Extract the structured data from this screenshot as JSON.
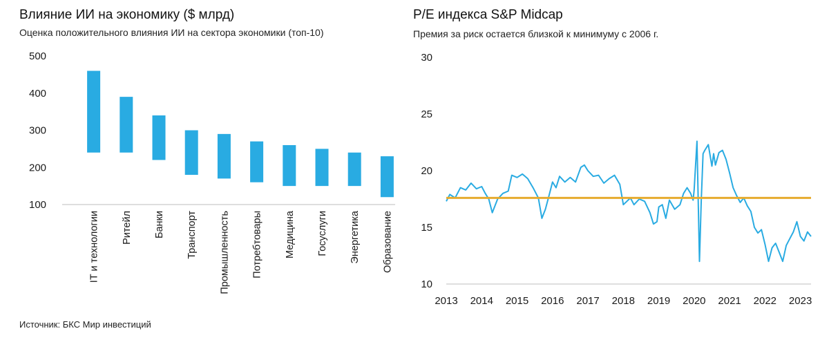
{
  "source": "Источник: БКС Мир инвестиций",
  "colors": {
    "bar": "#29abe2",
    "line": "#29abe2",
    "reference": "#e6ab2e",
    "axis": "#bdbdbd"
  },
  "chart_data": [
    {
      "type": "bar",
      "title": "Влияние ИИ на экономику ($ млрд)",
      "subtitle": "Оценка положительного влияния ИИ на сектора экономики (топ-10)",
      "ylim": [
        100,
        500
      ],
      "yticks": [
        "500",
        "400",
        "300",
        "200",
        "100"
      ],
      "ytick_values": [
        500,
        400,
        300,
        200,
        100
      ],
      "categories": [
        "IT и технологии",
        "Ритейл",
        "Банки",
        "Транспорт",
        "Промышленность",
        "Потребтовары",
        "Медицина",
        "Госуслуги",
        "Энергетика",
        "Образование"
      ],
      "series": [
        {
          "low": [
            240,
            240,
            220,
            180,
            170,
            160,
            150,
            150,
            150,
            120
          ],
          "high": [
            460,
            390,
            340,
            300,
            290,
            270,
            260,
            250,
            240,
            230
          ]
        }
      ],
      "grid": false
    },
    {
      "type": "line",
      "title": "P/E индекса S&P Midcap",
      "subtitle": "Премия за риск остается близкой к минимуму с 2006 г.",
      "ylim": [
        10,
        30
      ],
      "yticks": [
        "30",
        "25",
        "20",
        "15",
        "10"
      ],
      "ytick_values": [
        30,
        25,
        20,
        15,
        10
      ],
      "xticks": [
        "2013",
        "2014",
        "2015",
        "2016",
        "2017",
        "2018",
        "2019",
        "2020",
        "2021",
        "2022",
        "2023"
      ],
      "xtick_values": [
        2013,
        2014,
        2015,
        2016,
        2017,
        2018,
        2019,
        2020,
        2021,
        2022,
        2023
      ],
      "xlim": [
        2013,
        2023.3
      ],
      "series": [
        {
          "x": [
            2013.0,
            2013.1,
            2013.25,
            2013.4,
            2013.55,
            2013.7,
            2013.85,
            2014.0,
            2014.1,
            2014.2,
            2014.3,
            2014.45,
            2014.6,
            2014.75,
            2014.85,
            2015.0,
            2015.15,
            2015.3,
            2015.45,
            2015.6,
            2015.7,
            2015.8,
            2015.9,
            2016.0,
            2016.1,
            2016.2,
            2016.35,
            2016.5,
            2016.65,
            2016.8,
            2016.9,
            2017.0,
            2017.15,
            2017.3,
            2017.45,
            2017.6,
            2017.75,
            2017.9,
            2018.0,
            2018.1,
            2018.2,
            2018.3,
            2018.45,
            2018.6,
            2018.75,
            2018.85,
            2018.95,
            2019.0,
            2019.1,
            2019.2,
            2019.3,
            2019.45,
            2019.6,
            2019.7,
            2019.8,
            2019.9,
            2019.97,
            2020.0,
            2020.03,
            2020.08,
            2020.15,
            2020.2,
            2020.25,
            2020.3,
            2020.4,
            2020.5,
            2020.55,
            2020.6,
            2020.7,
            2020.8,
            2020.9,
            2021.0,
            2021.1,
            2021.2,
            2021.3,
            2021.4,
            2021.5,
            2021.6,
            2021.7,
            2021.8,
            2021.9,
            2022.0,
            2022.1,
            2022.2,
            2022.3,
            2022.4,
            2022.5,
            2022.6,
            2022.7,
            2022.8,
            2022.9,
            2023.0,
            2023.1,
            2023.2,
            2023.3
          ],
          "values": [
            17.3,
            17.9,
            17.6,
            18.5,
            18.3,
            18.9,
            18.4,
            18.6,
            18.0,
            17.5,
            16.3,
            17.5,
            18.0,
            18.2,
            19.6,
            19.4,
            19.7,
            19.3,
            18.5,
            17.6,
            15.8,
            16.6,
            17.8,
            19.0,
            18.5,
            19.5,
            19.0,
            19.4,
            19.0,
            20.3,
            20.5,
            20.0,
            19.5,
            19.6,
            18.9,
            19.3,
            19.6,
            18.8,
            17.0,
            17.3,
            17.6,
            17.0,
            17.5,
            17.3,
            16.3,
            15.3,
            15.5,
            16.8,
            17.0,
            15.8,
            17.4,
            16.6,
            17.0,
            18.0,
            18.5,
            18.0,
            17.4,
            18.3,
            20.0,
            22.6,
            12.0,
            17.4,
            21.5,
            21.8,
            22.3,
            20.4,
            21.5,
            20.5,
            21.6,
            21.8,
            21.0,
            19.8,
            18.5,
            17.8,
            17.2,
            17.6,
            16.9,
            16.4,
            15.0,
            14.5,
            14.8,
            13.5,
            12.0,
            13.2,
            13.6,
            12.8,
            12.0,
            13.4,
            14.0,
            14.6,
            15.5,
            14.2,
            13.8,
            14.6,
            14.2
          ]
        }
      ],
      "reference_value": 17.6,
      "grid": false
    }
  ]
}
